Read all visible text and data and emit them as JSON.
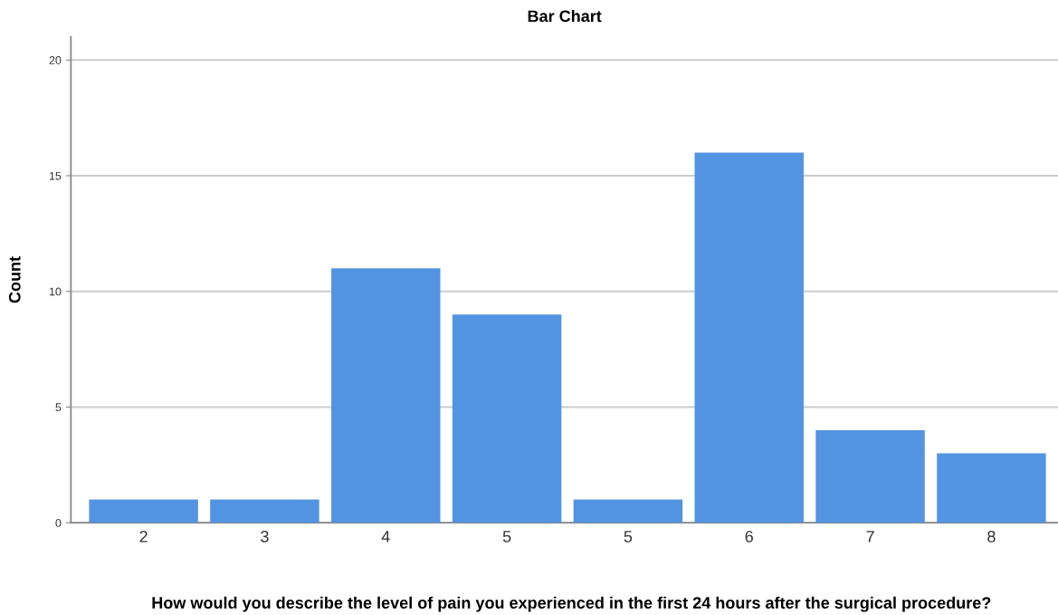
{
  "chart_data": {
    "type": "bar",
    "title": "Bar Chart",
    "xlabel": "How would you describe the level of pain you experienced in the first 24 hours after the surgical procedure?",
    "ylabel": "Count",
    "categories": [
      "2",
      "3",
      "4",
      "5",
      "5",
      "6",
      "7",
      "8"
    ],
    "values": [
      1,
      1,
      11,
      9,
      1,
      16,
      4,
      3
    ],
    "color": "#5294e2",
    "ylim": [
      0,
      21
    ],
    "yticks": [
      0,
      5,
      10,
      15,
      20
    ],
    "grid": "y",
    "legend": false
  }
}
